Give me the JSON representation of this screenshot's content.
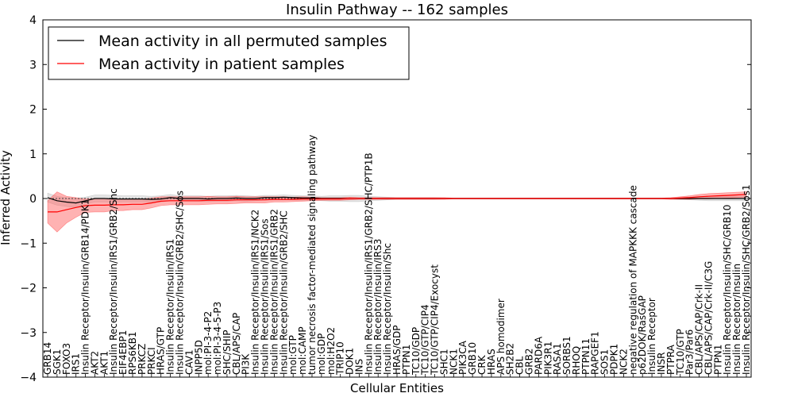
{
  "chart_data": {
    "type": "line",
    "title": "Insulin Pathway -- 162 samples",
    "xlabel": "Cellular Entities",
    "ylabel": "Inferred Activity",
    "ylim": [
      -4,
      4
    ],
    "yticks": [
      "−4",
      "−3",
      "−2",
      "−1",
      "0",
      "1",
      "2",
      "3",
      "4"
    ],
    "yticks_values": [
      -4,
      -3,
      -2,
      -1,
      0,
      1,
      2,
      3,
      4
    ],
    "legend": {
      "location": "top-left",
      "entries": [
        {
          "label": "Mean activity in all permuted samples",
          "color": "#000000"
        },
        {
          "label": "Mean activity in patient samples",
          "color": "#ff0000"
        }
      ]
    },
    "categories": [
      "GRB14",
      "SGK1",
      "FOXO3",
      "IRS1",
      "Insulin Receptor/Insulin/GRB14/PDK1",
      "AKT2",
      "AKT1",
      "Insulin Receptor/Insulin/IRS1/GRB2/Shc",
      "EIF4EBP1",
      "RPS6KB1",
      "PRKCZ",
      "PRKCI",
      "HRAS/GTP",
      "Insulin Receptor/Insulin/IRS1",
      "Insulin Receptor/Insulin/GRB2/SHC/Sos",
      "CAV1",
      "INPP5D",
      "mol:PI-3-4-P2",
      "mol:PI-3-4-5-P3",
      "SHC/SHIP",
      "CBL/APS/CAP",
      "PI3K",
      "Insulin Receptor/Insulin/IRS1/NCK2",
      "Insulin Receptor/Insulin/IRS1/Sos",
      "Insulin Receptor/Insulin/IRS1/GRB2",
      "Insulin Receptor/Insulin/GRB2/SHC",
      "mol:GTP",
      "mol:CAMP",
      "tumor necrosis factor-mediated signaling pathway",
      "mol:GDP",
      "mol:H2O2",
      "TRIP10",
      "DOK1",
      "INS",
      "Insulin Receptor/Insulin/IRS1/GRB2/SHC/PTP1B",
      "Insulin Receptor/Insulin/IRS3",
      "Insulin Receptor/Insulin/Shc",
      "HRAS/GDP",
      "PTPN1",
      "TC10/GDP",
      "TC10/GTP/CIP4",
      "TC10/GTP/CIP4/Exocyst",
      "SHC1",
      "NCK1",
      "PIK3CA",
      "GRB10",
      "CRK",
      "HRAS",
      "APS homodimer",
      "SH2B2",
      "CBL",
      "GRB2",
      "PARD6A",
      "PIK3R1",
      "RASA1",
      "SORBS1",
      "RHOQ",
      "PTPN11",
      "RAPGEF1",
      "SOS1",
      "PDPK1",
      "NCK2",
      "negative regulation of MAPKKK cascade",
      "p62DOK/RasGAP",
      "Insulin Receptor",
      "INSR",
      "PTPRA",
      "TC10/GTP",
      "Par3/Par6",
      "CBL/APS/CAP/Crk-II",
      "CBL/APS/CAP/Crk-II/C3G",
      "PTPN1",
      "Insulin Receptor/Insulin/SHC/GRB10",
      "Insulin Receptor/Insulin",
      "Insulin Receptor/Insulin/SHC/GRB2/Sos1"
    ],
    "series": [
      {
        "name": "Mean activity in all permuted samples",
        "color": "#000000",
        "values": [
          0.02,
          -0.05,
          -0.08,
          -0.1,
          -0.05,
          0.0,
          0.0,
          -0.01,
          -0.01,
          -0.01,
          -0.01,
          -0.02,
          -0.01,
          0.02,
          0.0,
          0.0,
          0.0,
          -0.01,
          0.0,
          0.0,
          0.01,
          0.0,
          0.0,
          0.02,
          0.02,
          0.03,
          0.02,
          0.01,
          0.01,
          0.0,
          0.0,
          0.0,
          0.0,
          0.0,
          0.0,
          0.0,
          0.0,
          0.0,
          0.0,
          0.0,
          0.0,
          0.0,
          0.0,
          0.0,
          0.0,
          0.0,
          0.0,
          0.0,
          0.0,
          0.0,
          0.0,
          0.0,
          0.0,
          0.0,
          0.0,
          0.0,
          0.0,
          0.0,
          0.0,
          0.0,
          0.0,
          0.0,
          0.0,
          0.0,
          0.0,
          0.0,
          0.0,
          0.0,
          0.0,
          0.0,
          0.0,
          0.0,
          0.0,
          0.0,
          0.0
        ],
        "band": [
          0.1,
          0.1,
          0.1,
          0.1,
          0.08,
          0.08,
          0.08,
          0.08,
          0.07,
          0.07,
          0.07,
          0.07,
          0.07,
          0.07,
          0.06,
          0.06,
          0.06,
          0.06,
          0.06,
          0.06,
          0.06,
          0.06,
          0.05,
          0.05,
          0.05,
          0.05,
          0.05,
          0.05,
          0.05,
          0.05,
          0.06,
          0.06,
          0.07,
          0.07,
          0.05,
          0.04,
          0.03,
          0.02,
          0.02,
          0.02,
          0.02,
          0.02,
          0.01,
          0.01,
          0.01,
          0.01,
          0.01,
          0.01,
          0.01,
          0.01,
          0.01,
          0.01,
          0.01,
          0.01,
          0.01,
          0.01,
          0.01,
          0.01,
          0.01,
          0.01,
          0.01,
          0.01,
          0.01,
          0.01,
          0.01,
          0.01,
          0.01,
          0.02,
          0.03,
          0.04,
          0.05,
          0.05,
          0.05,
          0.05,
          0.05
        ]
      },
      {
        "name": "Mean activity in patient samples",
        "color": "#ff0000",
        "values": [
          -0.3,
          -0.3,
          -0.25,
          -0.2,
          -0.16,
          -0.15,
          -0.15,
          -0.14,
          -0.14,
          -0.13,
          -0.13,
          -0.1,
          -0.06,
          -0.05,
          -0.05,
          -0.05,
          -0.05,
          -0.04,
          -0.04,
          -0.04,
          -0.03,
          -0.03,
          -0.03,
          -0.03,
          -0.02,
          -0.02,
          -0.02,
          -0.01,
          -0.01,
          -0.01,
          -0.01,
          -0.01,
          0.0,
          0.0,
          0.0,
          0.0,
          0.0,
          0.0,
          0.0,
          0.0,
          0.0,
          0.0,
          0.0,
          0.0,
          0.0,
          0.0,
          0.0,
          0.0,
          0.0,
          0.0,
          0.0,
          0.0,
          0.0,
          0.0,
          0.0,
          0.0,
          0.0,
          0.0,
          0.0,
          0.0,
          0.0,
          0.0,
          0.0,
          0.0,
          0.0,
          0.0,
          0.0,
          0.01,
          0.02,
          0.04,
          0.05,
          0.06,
          0.07,
          0.08,
          0.09
        ],
        "band": [
          0.25,
          0.45,
          0.3,
          0.22,
          0.15,
          0.15,
          0.15,
          0.13,
          0.13,
          0.12,
          0.12,
          0.11,
          0.1,
          0.09,
          0.09,
          0.09,
          0.09,
          0.09,
          0.08,
          0.08,
          0.08,
          0.07,
          0.07,
          0.07,
          0.06,
          0.06,
          0.05,
          0.05,
          0.04,
          0.03,
          0.03,
          0.03,
          0.03,
          0.02,
          0.02,
          0.02,
          0.02,
          0.02,
          0.02,
          0.02,
          0.02,
          0.02,
          0.02,
          0.01,
          0.01,
          0.01,
          0.01,
          0.01,
          0.01,
          0.01,
          0.01,
          0.01,
          0.01,
          0.01,
          0.01,
          0.01,
          0.01,
          0.01,
          0.01,
          0.01,
          0.01,
          0.01,
          0.01,
          0.01,
          0.01,
          0.01,
          0.02,
          0.03,
          0.04,
          0.05,
          0.06,
          0.06,
          0.06,
          0.06,
          0.06
        ]
      }
    ]
  }
}
